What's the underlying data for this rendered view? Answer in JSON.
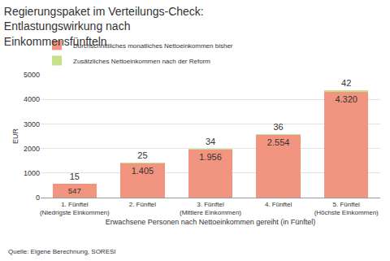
{
  "chart_data": {
    "type": "bar",
    "title": "Regierungspaket im Verteilungs-Check: Entlastungswirkung nach Einkommensfünfteln",
    "categories": [
      "1. Fünftel (Niedrigste Einkommen)",
      "2. Fünftel",
      "3. Fünftel (Mittlere Einkommen)",
      "4. Fünftel",
      "5. Fünftel (Höchste Einkommen)"
    ],
    "series": [
      {
        "name": "Durchschnittliches monatliches Nettoeinkommen bisher",
        "color": "#f29580",
        "values": [
          547,
          1405,
          1956,
          2554,
          4320
        ],
        "value_labels": [
          "547",
          "1.405",
          "1.956",
          "2.554",
          "4.320"
        ]
      },
      {
        "name": "Zusätzliches Nettoeinkommen nach der Reform",
        "color": "#c6e08c",
        "values": [
          15,
          25,
          34,
          36,
          42
        ]
      }
    ],
    "x_label": "Erwachsene Personen nach Nettoeinkommen gereiht (in Fünftel)",
    "y_label": "EUR",
    "source": "Quelle: Eigene Berechnung, SORESI",
    "ylim": [
      0,
      5000
    ],
    "yticks": [
      0,
      1000,
      2000,
      3000,
      4000,
      5000
    ],
    "stacked": true,
    "data_labels": true,
    "grid": true,
    "legend": "top-left"
  }
}
